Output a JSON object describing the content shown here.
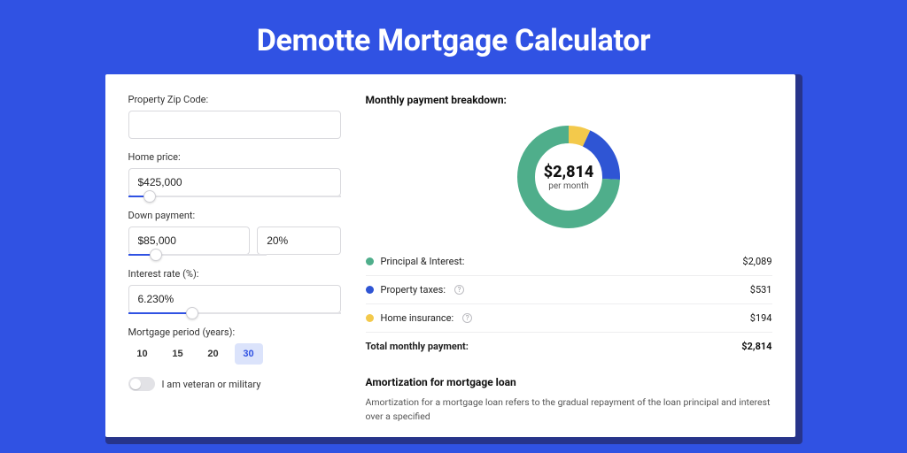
{
  "page": {
    "title": "Demotte Mortgage Calculator",
    "bg_color": "#3052e3",
    "shadow_color": "#27348a",
    "card_bg": "#ffffff"
  },
  "form": {
    "zip": {
      "label": "Property Zip Code:",
      "value": ""
    },
    "home_price": {
      "label": "Home price:",
      "value": "$425,000",
      "slider_pct": 10
    },
    "down_payment": {
      "label": "Down payment:",
      "amount": "$85,000",
      "percent": "20%",
      "slider_pct": 20
    },
    "interest_rate": {
      "label": "Interest rate (%):",
      "value": "6.230%",
      "slider_pct": 30
    },
    "period": {
      "label": "Mortgage period (years):",
      "options": [
        "10",
        "15",
        "20",
        "30"
      ],
      "active_index": 3
    },
    "veteran": {
      "label": "I am veteran or military",
      "checked": false
    }
  },
  "breakdown": {
    "title": "Monthly payment breakdown:",
    "center_amount": "$2,814",
    "center_sub": "per month",
    "donut": {
      "radius": 48,
      "stroke": 20,
      "bg": "#ffffff",
      "segments": [
        {
          "key": "home_insurance",
          "color": "#f3c94b",
          "fraction": 0.069
        },
        {
          "key": "property_taxes",
          "color": "#2f55d4",
          "fraction": 0.189
        },
        {
          "key": "principal_interest",
          "color": "#4fae8b",
          "fraction": 0.742
        }
      ]
    },
    "rows": [
      {
        "label": "Principal & Interest:",
        "value": "$2,089",
        "color": "#4fae8b",
        "info": false
      },
      {
        "label": "Property taxes:",
        "value": "$531",
        "color": "#2f55d4",
        "info": true
      },
      {
        "label": "Home insurance:",
        "value": "$194",
        "color": "#f3c94b",
        "info": true
      }
    ],
    "total": {
      "label": "Total monthly payment:",
      "value": "$2,814"
    }
  },
  "amortization": {
    "title": "Amortization for mortgage loan",
    "text": "Amortization for a mortgage loan refers to the gradual repayment of the loan principal and interest over a specified"
  }
}
